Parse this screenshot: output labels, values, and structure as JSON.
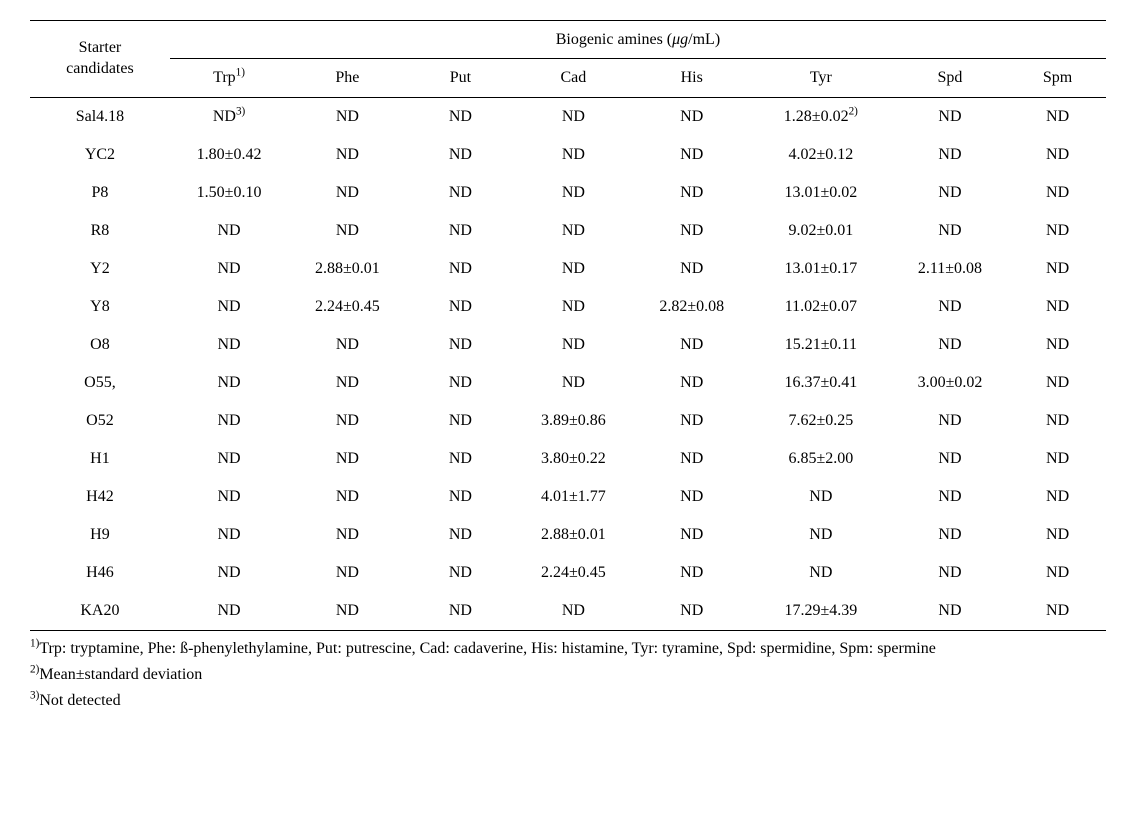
{
  "header": {
    "left_label_l1": "Starter",
    "left_label_l2": "candidates",
    "spanner_prefix": "Biogenic amines (",
    "spanner_unit": "μg",
    "spanner_suffix": "/mL)",
    "cols": [
      "Trp",
      "Phe",
      "Put",
      "Cad",
      "His",
      "Tyr",
      "Spd",
      "Spm"
    ],
    "sup1": "1)"
  },
  "rows": [
    {
      "label": "Sal4.18",
      "c": [
        "ND",
        "ND",
        "ND",
        "ND",
        "ND",
        "1.28±0.02",
        "ND",
        "ND"
      ],
      "sup0": "3)",
      "sup5": "2)"
    },
    {
      "label": "YC2",
      "c": [
        "1.80±0.42",
        "ND",
        "ND",
        "ND",
        "ND",
        "4.02±0.12",
        "ND",
        "ND"
      ]
    },
    {
      "label": "P8",
      "c": [
        "1.50±0.10",
        "ND",
        "ND",
        "ND",
        "ND",
        "13.01±0.02",
        "ND",
        "ND"
      ]
    },
    {
      "label": "R8",
      "c": [
        "ND",
        "ND",
        "ND",
        "ND",
        "ND",
        "9.02±0.01",
        "ND",
        "ND"
      ]
    },
    {
      "label": "Y2",
      "c": [
        "ND",
        "2.88±0.01",
        "ND",
        "ND",
        "ND",
        "13.01±0.17",
        "2.11±0.08",
        "ND"
      ]
    },
    {
      "label": "Y8",
      "c": [
        "ND",
        "2.24±0.45",
        "ND",
        "ND",
        "2.82±0.08",
        "11.02±0.07",
        "ND",
        "ND"
      ]
    },
    {
      "label": "O8",
      "c": [
        "ND",
        "ND",
        "ND",
        "ND",
        "ND",
        "15.21±0.11",
        "ND",
        "ND"
      ]
    },
    {
      "label": "O55,",
      "c": [
        "ND",
        "ND",
        "ND",
        "ND",
        "ND",
        "16.37±0.41",
        "3.00±0.02",
        "ND"
      ]
    },
    {
      "label": "O52",
      "c": [
        "ND",
        "ND",
        "ND",
        "3.89±0.86",
        "ND",
        "7.62±0.25",
        "ND",
        "ND"
      ]
    },
    {
      "label": "H1",
      "c": [
        "ND",
        "ND",
        "ND",
        "3.80±0.22",
        "ND",
        "6.85±2.00",
        "ND",
        "ND"
      ]
    },
    {
      "label": "H42",
      "c": [
        "ND",
        "ND",
        "ND",
        "4.01±1.77",
        "ND",
        "ND",
        "ND",
        "ND"
      ]
    },
    {
      "label": "H9",
      "c": [
        "ND",
        "ND",
        "ND",
        "2.88±0.01",
        "ND",
        "ND",
        "ND",
        "ND"
      ]
    },
    {
      "label": "H46",
      "c": [
        "ND",
        "ND",
        "ND",
        "2.24±0.45",
        "ND",
        "ND",
        "ND",
        "ND"
      ]
    },
    {
      "label": "KA20",
      "c": [
        "ND",
        "ND",
        "ND",
        "ND",
        "ND",
        "17.29±4.39",
        "ND",
        "ND"
      ]
    }
  ],
  "footnotes": {
    "f1_sup": "1)",
    "f1": "Trp: tryptamine, Phe: ß-phenylethylamine, Put: putrescine, Cad: cadaverine, His: histamine, Tyr: tyramine, Spd: spermidine, Spm: spermine",
    "f2_sup": "2)",
    "f2": "Mean±standard deviation",
    "f3_sup": "3)",
    "f3": "Not detected"
  },
  "col_widths": [
    "13%",
    "11%",
    "11%",
    "10%",
    "11%",
    "11%",
    "13%",
    "11%",
    "9%"
  ]
}
